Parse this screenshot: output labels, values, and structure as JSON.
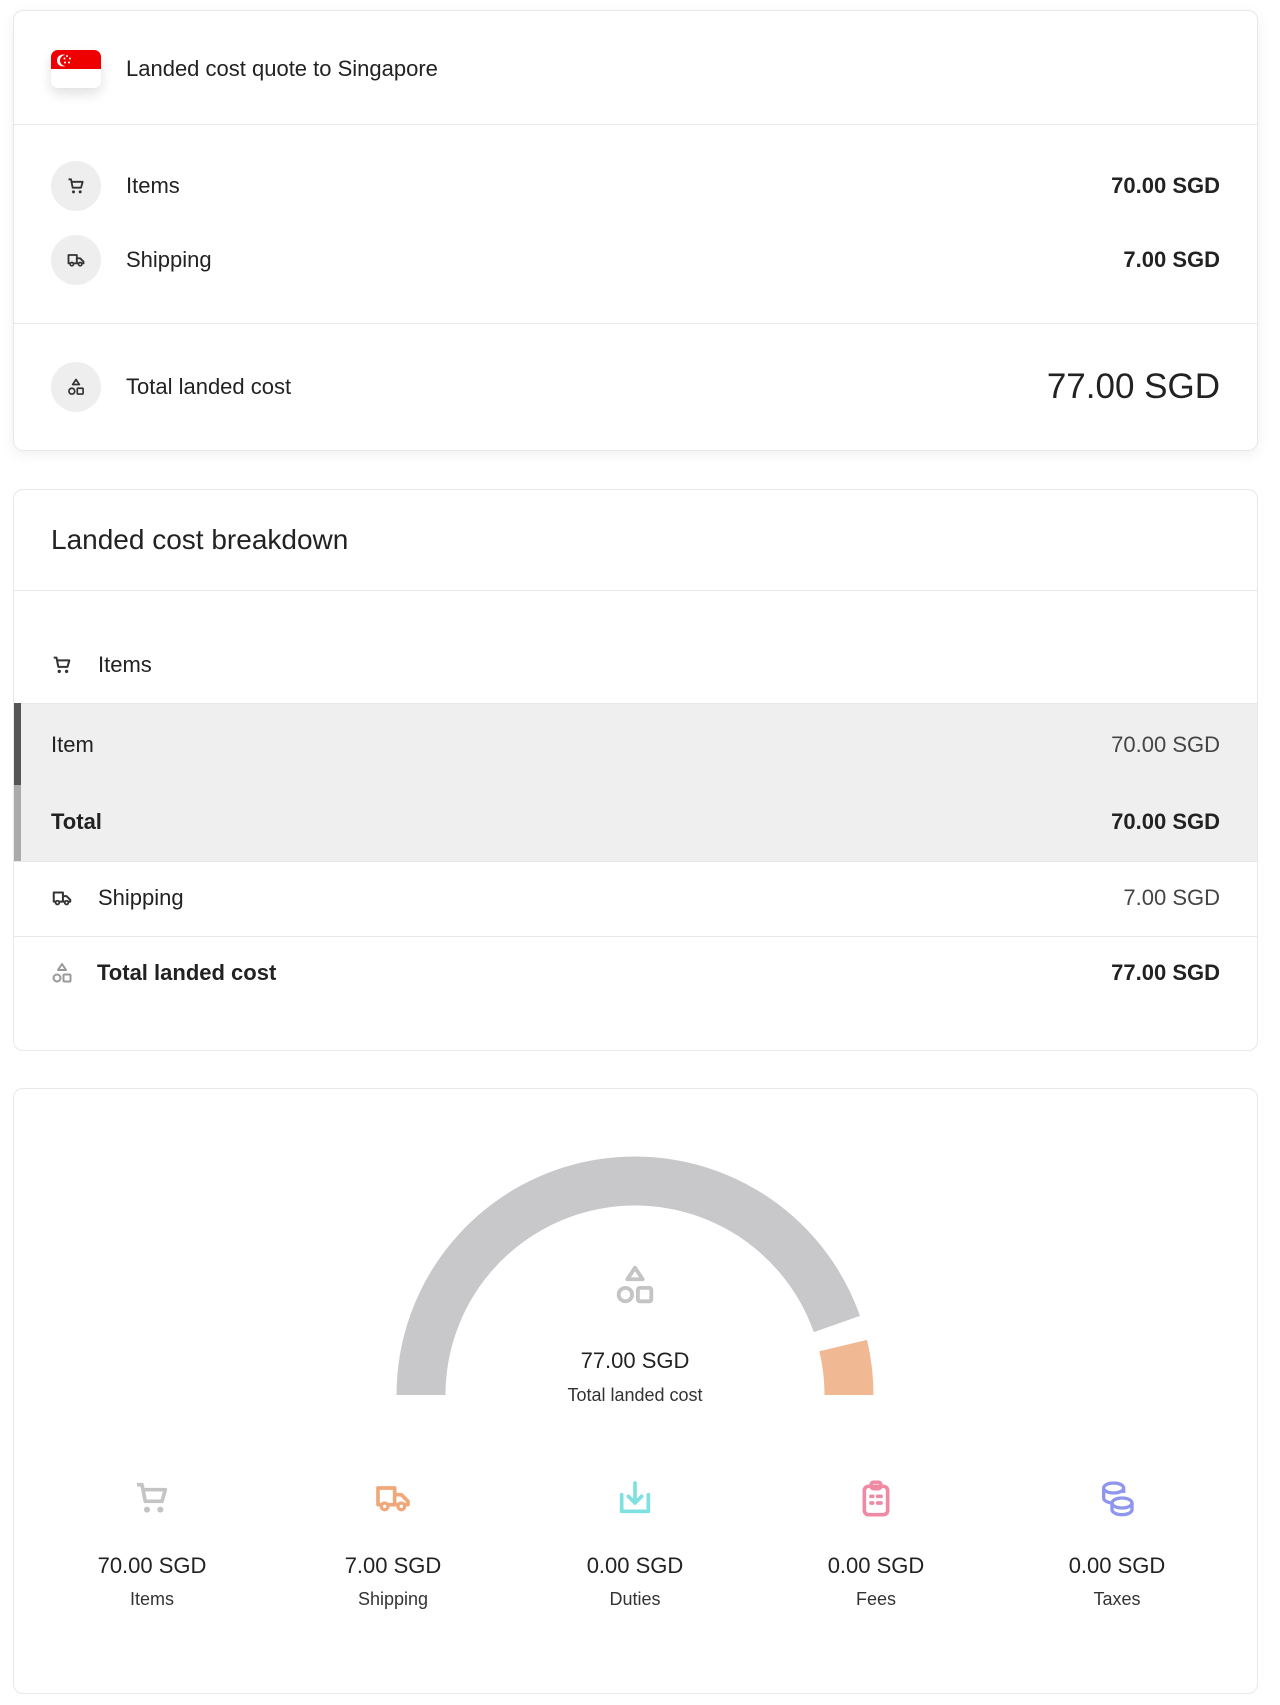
{
  "quote": {
    "title": "Landed cost quote to Singapore",
    "flag_icon": "singapore-flag",
    "items": [
      {
        "label": "Items",
        "value": "70.00 SGD",
        "icon": "cart-icon"
      },
      {
        "label": "Shipping",
        "value": "7.00 SGD",
        "icon": "truck-icon"
      }
    ],
    "total": {
      "label": "Total landed cost",
      "value": "77.00 SGD",
      "icon": "shapes-icon"
    }
  },
  "breakdown": {
    "title": "Landed cost breakdown",
    "items_header": "Items",
    "rows": [
      {
        "label": "Item",
        "value": "70.00 SGD"
      },
      {
        "label": "Total",
        "value": "70.00 SGD"
      }
    ],
    "shipping": {
      "label": "Shipping",
      "value": "7.00 SGD"
    },
    "total": {
      "label": "Total landed cost",
      "value": "77.00 SGD"
    }
  },
  "summary": {
    "total_value": "77.00 SGD",
    "total_label": "Total landed cost",
    "gauge": {
      "segments": [
        {
          "name": "Items",
          "amount": 70,
          "color": "#c8c8ca"
        },
        {
          "name": "Shipping",
          "amount": 7,
          "color": "#f0b994"
        }
      ]
    },
    "stats": [
      {
        "value": "70.00 SGD",
        "label": "Items",
        "icon": "cart-icon",
        "color": "#c4c4c4"
      },
      {
        "value": "7.00 SGD",
        "label": "Shipping",
        "icon": "truck-icon",
        "color": "#f0a77a"
      },
      {
        "value": "0.00 SGD",
        "label": "Duties",
        "icon": "download-tray-icon",
        "color": "#7fe0e0"
      },
      {
        "value": "0.00 SGD",
        "label": "Fees",
        "icon": "clipboard-icon",
        "color": "#ef8aa5"
      },
      {
        "value": "0.00 SGD",
        "label": "Taxes",
        "icon": "coins-icon",
        "color": "#8f96ee"
      }
    ]
  }
}
